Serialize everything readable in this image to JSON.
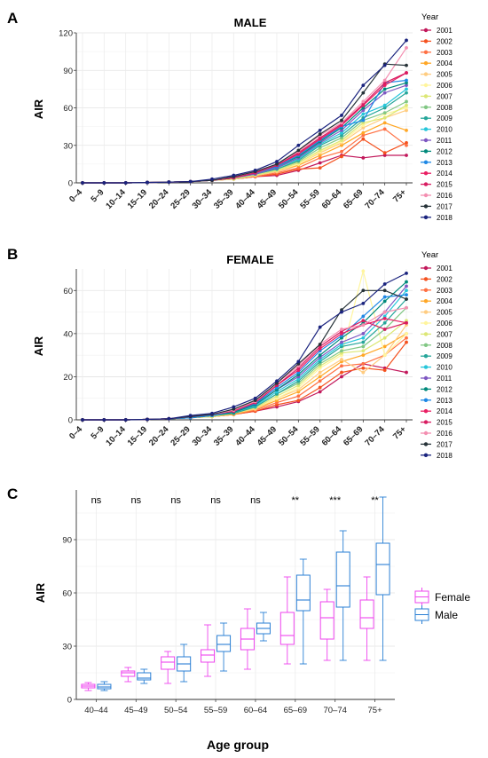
{
  "figure": {
    "panels": [
      {
        "letter": "A",
        "title": "MALE"
      },
      {
        "letter": "B",
        "title": "FEMALE"
      },
      {
        "letter": "C",
        "title": ""
      }
    ]
  },
  "chart_data": [
    {
      "type": "line",
      "panel": "A",
      "title": "MALE",
      "ylabel": "AIR",
      "xlabel": "",
      "ylim": [
        0,
        120
      ],
      "yticks": [
        0,
        30,
        60,
        90,
        120
      ],
      "categories": [
        "0–4",
        "5–9",
        "10–14",
        "15–19",
        "20–24",
        "25–29",
        "30–34",
        "35–39",
        "40–44",
        "45–49",
        "50–54",
        "55–59",
        "60–64",
        "65–69",
        "70–74",
        "75+"
      ],
      "legend_title": "Year",
      "legend_position": "right",
      "grid": true,
      "series": [
        {
          "name": "2001",
          "color": "#c2185b",
          "values": [
            0,
            0,
            0,
            0.3,
            0.6,
            1,
            2,
            3,
            5,
            6,
            10,
            16,
            22,
            20,
            22,
            22
          ]
        },
        {
          "name": "2002",
          "color": "#f4511e",
          "values": [
            0,
            0,
            0,
            0.3,
            0.6,
            1,
            2,
            3,
            5,
            7,
            11,
            12,
            21,
            35,
            24,
            32
          ]
        },
        {
          "name": "2003",
          "color": "#ff7043",
          "values": [
            0,
            0,
            0,
            0.3,
            0.6,
            1,
            2,
            3,
            5,
            8,
            12,
            20,
            25,
            38,
            43,
            30
          ]
        },
        {
          "name": "2004",
          "color": "#ffa726",
          "values": [
            0,
            0,
            0,
            0.3,
            0.6,
            1,
            2,
            3,
            6,
            9,
            14,
            22,
            30,
            40,
            48,
            42
          ]
        },
        {
          "name": "2005",
          "color": "#ffcc80",
          "values": [
            0,
            0,
            0,
            0.3,
            0.6,
            1,
            2,
            3,
            6,
            9,
            15,
            24,
            32,
            44,
            52,
            58
          ]
        },
        {
          "name": "2006",
          "color": "#fff59d",
          "values": [
            0,
            0,
            0,
            0.3,
            0.6,
            1,
            2,
            3,
            6,
            10,
            15,
            25,
            33,
            46,
            55,
            60
          ]
        },
        {
          "name": "2007",
          "color": "#dce775",
          "values": [
            0,
            0,
            0,
            0.3,
            0.6,
            1,
            2,
            3,
            6,
            10,
            16,
            26,
            34,
            48,
            52,
            62
          ]
        },
        {
          "name": "2008",
          "color": "#81c784",
          "values": [
            0,
            0,
            0,
            0.3,
            0.6,
            1,
            2,
            4,
            7,
            11,
            17,
            28,
            36,
            50,
            56,
            65
          ]
        },
        {
          "name": "2009",
          "color": "#26a69a",
          "values": [
            0,
            0,
            0,
            0.3,
            0.6,
            1,
            2,
            4,
            7,
            11,
            18,
            30,
            38,
            52,
            60,
            72
          ]
        },
        {
          "name": "2010",
          "color": "#26c6da",
          "values": [
            0,
            0,
            0,
            0.3,
            0.6,
            1,
            2,
            4,
            7,
            12,
            19,
            31,
            40,
            55,
            62,
            75
          ]
        },
        {
          "name": "2011",
          "color": "#7e57c2",
          "values": [
            0,
            0,
            0,
            0.3,
            0.6,
            1,
            2,
            4,
            7,
            12,
            20,
            32,
            42,
            58,
            72,
            78
          ]
        },
        {
          "name": "2012",
          "color": "#00897b",
          "values": [
            0,
            0,
            0,
            0.3,
            0.6,
            1,
            2,
            4,
            8,
            13,
            21,
            33,
            44,
            60,
            75,
            80
          ]
        },
        {
          "name": "2013",
          "color": "#1e88e5",
          "values": [
            0,
            0,
            0,
            0.3,
            0.6,
            1,
            2,
            4,
            8,
            13,
            22,
            34,
            45,
            50,
            80,
            82
          ]
        },
        {
          "name": "2014",
          "color": "#e91e63",
          "values": [
            0,
            0,
            0,
            0.3,
            0.6,
            1,
            2,
            4,
            8,
            14,
            23,
            35,
            46,
            62,
            78,
            88
          ]
        },
        {
          "name": "2015",
          "color": "#d81b60",
          "values": [
            0,
            0,
            0,
            0.3,
            0.6,
            1,
            2,
            4,
            8,
            14,
            24,
            36,
            47,
            63,
            80,
            88
          ]
        },
        {
          "name": "2016",
          "color": "#f48fb1",
          "values": [
            0,
            0,
            0,
            0.3,
            0.6,
            1,
            2,
            5,
            9,
            15,
            25,
            38,
            48,
            65,
            82,
            108
          ]
        },
        {
          "name": "2017",
          "color": "#263238",
          "values": [
            0,
            0,
            0,
            0.3,
            0.6,
            1,
            2,
            5,
            9,
            15,
            26,
            39,
            50,
            72,
            95,
            94
          ]
        },
        {
          "name": "2018",
          "color": "#1a237e",
          "values": [
            0,
            0,
            0,
            0.3,
            0.6,
            1,
            3,
            6,
            10,
            17,
            30,
            42,
            54,
            78,
            94,
            114
          ]
        }
      ]
    },
    {
      "type": "line",
      "panel": "B",
      "title": "FEMALE",
      "ylabel": "AIR",
      "xlabel": "",
      "ylim": [
        0,
        70
      ],
      "yticks": [
        0,
        20,
        40,
        60
      ],
      "categories": [
        "0–4",
        "5–9",
        "10–14",
        "15–19",
        "20–24",
        "25–29",
        "30–34",
        "35–39",
        "40–44",
        "45–49",
        "50–54",
        "55–59",
        "60–64",
        "65–69",
        "70–74",
        "75+"
      ],
      "legend_title": "Year",
      "legend_position": "right",
      "grid": true,
      "series": [
        {
          "name": "2001",
          "color": "#c2185b",
          "values": [
            0,
            0,
            0,
            0.2,
            0.5,
            1,
            1.5,
            2.5,
            4,
            6,
            8.5,
            13,
            20,
            26,
            24,
            22
          ]
        },
        {
          "name": "2002",
          "color": "#f4511e",
          "values": [
            0,
            0,
            0,
            0.2,
            0.5,
            1,
            1.5,
            2.5,
            4,
            7,
            9,
            15,
            22,
            24,
            23,
            36
          ]
        },
        {
          "name": "2003",
          "color": "#ff7043",
          "values": [
            0,
            0,
            0,
            0.2,
            0.5,
            1,
            1.5,
            2.5,
            4.5,
            8,
            11,
            18,
            25,
            26,
            30,
            38
          ]
        },
        {
          "name": "2004",
          "color": "#ffa726",
          "values": [
            0,
            0,
            0,
            0.2,
            0.5,
            1,
            1.5,
            2.5,
            5,
            9,
            13,
            20,
            27,
            30,
            34,
            40
          ]
        },
        {
          "name": "2005",
          "color": "#ffcc80",
          "values": [
            0,
            0,
            0,
            0.2,
            0.5,
            1,
            1.5,
            3,
            5,
            10,
            14,
            22,
            28,
            22,
            30,
            44
          ]
        },
        {
          "name": "2006",
          "color": "#fff59d",
          "values": [
            0,
            0,
            0,
            0.2,
            0.5,
            1,
            1.5,
            3,
            5.5,
            10,
            15,
            24,
            30,
            69,
            30,
            40
          ]
        },
        {
          "name": "2007",
          "color": "#dce775",
          "values": [
            0,
            0,
            0,
            0.2,
            0.5,
            1,
            1.5,
            3,
            5.5,
            11,
            16,
            25,
            31,
            32,
            38,
            46
          ]
        },
        {
          "name": "2008",
          "color": "#81c784",
          "values": [
            0,
            0,
            0,
            0.2,
            0.5,
            1,
            2,
            3,
            6,
            12,
            17,
            26,
            32,
            34,
            42,
            52
          ]
        },
        {
          "name": "2009",
          "color": "#26a69a",
          "values": [
            0,
            0,
            0,
            0.2,
            0.5,
            1,
            2,
            3,
            6,
            12,
            18,
            27,
            34,
            36,
            45,
            56
          ]
        },
        {
          "name": "2010",
          "color": "#26c6da",
          "values": [
            0,
            0,
            0,
            0.2,
            0.5,
            1,
            2,
            3.5,
            6.5,
            13,
            19,
            28,
            35,
            38,
            48,
            60
          ]
        },
        {
          "name": "2011",
          "color": "#7e57c2",
          "values": [
            0,
            0,
            0,
            0.2,
            0.5,
            1,
            2,
            3.5,
            7,
            14,
            20,
            29,
            36,
            40,
            50,
            62
          ]
        },
        {
          "name": "2012",
          "color": "#00897b",
          "values": [
            0,
            0,
            0,
            0.2,
            0.5,
            1,
            2,
            3.5,
            7,
            14,
            21,
            30,
            38,
            45,
            55,
            64
          ]
        },
        {
          "name": "2013",
          "color": "#1e88e5",
          "values": [
            0,
            0,
            0,
            0.2,
            0.5,
            1,
            2,
            4,
            7.5,
            15,
            22,
            32,
            39,
            48,
            57,
            58
          ]
        },
        {
          "name": "2014",
          "color": "#e91e63",
          "values": [
            0,
            0,
            0,
            0.2,
            0.5,
            1.5,
            2.5,
            4,
            8,
            16,
            23,
            33,
            40,
            44,
            47,
            45
          ]
        },
        {
          "name": "2015",
          "color": "#d81b60",
          "values": [
            0,
            0,
            0,
            0.2,
            0.5,
            1.5,
            2.5,
            4.5,
            8,
            16,
            24,
            34,
            41,
            46,
            42,
            45
          ]
        },
        {
          "name": "2016",
          "color": "#f48fb1",
          "values": [
            0,
            0,
            0,
            0.2,
            0.5,
            1.5,
            2.5,
            4.5,
            8.5,
            17,
            25,
            35,
            42,
            44,
            50,
            52
          ]
        },
        {
          "name": "2017",
          "color": "#263238",
          "values": [
            0,
            0,
            0,
            0.2,
            0.5,
            1.5,
            2.5,
            5,
            9,
            17,
            26,
            35,
            51,
            60,
            60,
            56
          ]
        },
        {
          "name": "2018",
          "color": "#1a237e",
          "values": [
            0,
            0,
            0,
            0.2,
            0.5,
            2,
            3,
            6,
            10,
            18,
            27,
            43,
            50,
            54,
            63,
            68
          ]
        }
      ]
    },
    {
      "type": "box",
      "panel": "C",
      "title": "",
      "ylabel": "AIR",
      "xlabel": "Age group",
      "ylim": [
        0,
        118
      ],
      "yticks": [
        0,
        30,
        60,
        90
      ],
      "categories": [
        "40–44",
        "45–49",
        "50–54",
        "55–59",
        "60–64",
        "65–69",
        "70–74",
        "75+"
      ],
      "significance": [
        "ns",
        "ns",
        "ns",
        "ns",
        "ns",
        "**",
        "***",
        "**"
      ],
      "legend_position": "right",
      "grid": true,
      "series": [
        {
          "name": "Female",
          "color": "#ee44ee",
          "boxes": [
            {
              "min": 5,
              "q1": 6.5,
              "median": 7.5,
              "q3": 8.5,
              "max": 9.5
            },
            {
              "min": 10,
              "q1": 13,
              "median": 15,
              "q3": 16,
              "max": 18
            },
            {
              "min": 9,
              "q1": 17,
              "median": 21,
              "q3": 24,
              "max": 27
            },
            {
              "min": 13,
              "q1": 21,
              "median": 25,
              "q3": 28,
              "max": 42
            },
            {
              "min": 17,
              "q1": 28,
              "median": 34,
              "q3": 40,
              "max": 51
            },
            {
              "min": 20,
              "q1": 31,
              "median": 36,
              "q3": 49,
              "max": 69
            },
            {
              "min": 22,
              "q1": 34,
              "median": 46,
              "q3": 55,
              "max": 62
            },
            {
              "min": 22,
              "q1": 40,
              "median": 46,
              "q3": 56,
              "max": 69
            }
          ]
        },
        {
          "name": "Male",
          "color": "#2a7fd4",
          "boxes": [
            {
              "min": 5,
              "q1": 6,
              "median": 7,
              "q3": 8.5,
              "max": 10
            },
            {
              "min": 9,
              "q1": 11,
              "median": 12,
              "q3": 15,
              "max": 17
            },
            {
              "min": 10,
              "q1": 16,
              "median": 20,
              "q3": 24,
              "max": 31
            },
            {
              "min": 16,
              "q1": 27,
              "median": 31,
              "q3": 36,
              "max": 43
            },
            {
              "min": 33,
              "q1": 37,
              "median": 40,
              "q3": 43,
              "max": 49
            },
            {
              "min": 20,
              "q1": 50,
              "median": 56,
              "q3": 70,
              "max": 79
            },
            {
              "min": 22,
              "q1": 52,
              "median": 64,
              "q3": 83,
              "max": 95
            },
            {
              "min": 22,
              "q1": 59,
              "median": 76,
              "q3": 88,
              "max": 114
            }
          ]
        }
      ]
    }
  ]
}
